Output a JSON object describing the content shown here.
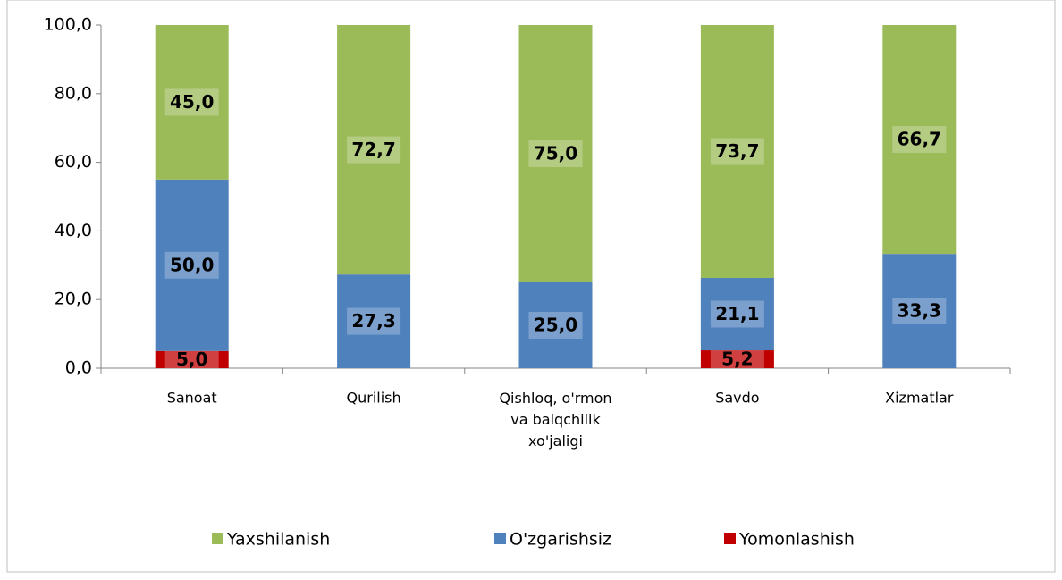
{
  "chart_data": {
    "type": "stacked_bar",
    "categories": [
      "Sanoat",
      "Qurilish",
      "Qishloq, o'rmon va balqchilik xo'jaligi",
      "Savdo",
      "Xizmatlar"
    ],
    "series": [
      {
        "name": "Yomonlashish",
        "color": "#c00000",
        "values": [
          5.0,
          null,
          null,
          5.2,
          null
        ],
        "value_labels": [
          "5,0",
          null,
          null,
          "5,2",
          null
        ]
      },
      {
        "name": "O'zgarishsiz",
        "color": "#4f81bd",
        "values": [
          50.0,
          27.3,
          25.0,
          21.1,
          33.3
        ],
        "value_labels": [
          "50,0",
          "27,3",
          "25,0",
          "21,1",
          "33,3"
        ]
      },
      {
        "name": "Yaxshilanish",
        "color": "#9bbb59",
        "values": [
          45.0,
          72.7,
          75.0,
          73.7,
          66.7
        ],
        "value_labels": [
          "45,0",
          "72,7",
          "75,0",
          "73,7",
          "66,7"
        ]
      }
    ],
    "legend_order": [
      "Yaxshilanish",
      "O'zgarishsiz",
      "Yomonlashish"
    ],
    "ylim": [
      0,
      100
    ],
    "yticks": [
      {
        "value": 0,
        "label": "0,0"
      },
      {
        "value": 20,
        "label": "20,0"
      },
      {
        "value": 40,
        "label": "40,0"
      },
      {
        "value": 60,
        "label": "60,0"
      },
      {
        "value": 80,
        "label": "80,0"
      },
      {
        "value": 100,
        "label": "100,0"
      }
    ],
    "legend": "bottom"
  }
}
